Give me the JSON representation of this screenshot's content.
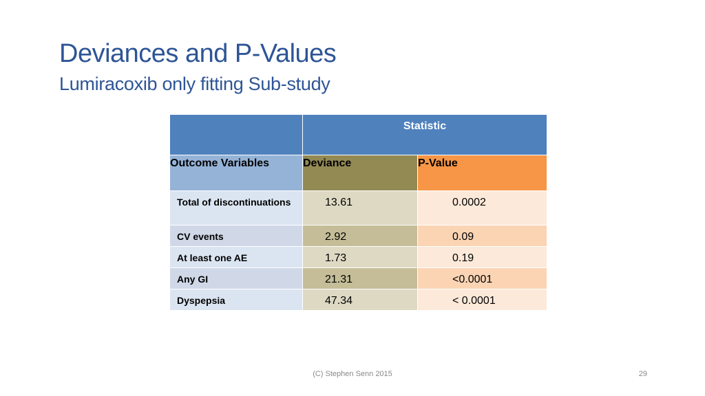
{
  "slide": {
    "title": "Deviances and P-Values",
    "subtitle": "Lumiracoxib only fitting Sub-study",
    "footer": "(C) Stephen Senn 2015",
    "page_number": "29"
  },
  "table": {
    "header": "Statistic",
    "columns": [
      "Outcome Variables",
      "Deviance",
      "P-Value"
    ],
    "rows": [
      {
        "outcome": "Total of discontinuations",
        "deviance": "13.61",
        "p_value": "0.0002"
      },
      {
        "outcome": "CV events",
        "deviance": "2.92",
        "p_value": "0.09"
      },
      {
        "outcome": "At least one AE",
        "deviance": "1.73",
        "p_value": "0.19"
      },
      {
        "outcome": "Any GI",
        "deviance": "21.31",
        "p_value": "<0.0001"
      },
      {
        "outcome": "Dyspepsia",
        "deviance": "47.34",
        "p_value": "< 0.0001"
      }
    ]
  },
  "colors": {
    "title": "#2e5596",
    "header_blue": "#4f81bd",
    "outcome_header": "#95b3d7",
    "deviance_header": "#938953",
    "pvalue_header": "#f79646"
  }
}
